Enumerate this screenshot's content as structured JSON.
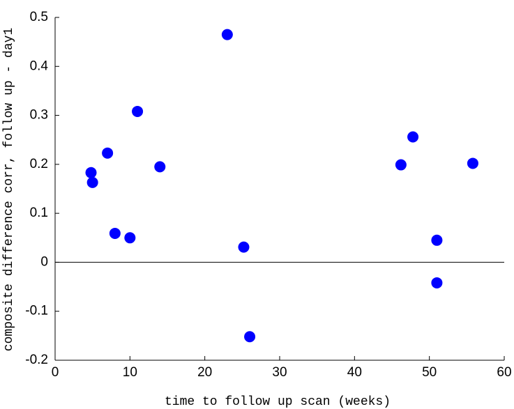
{
  "chart_data": {
    "type": "scatter",
    "xlabel": "time to follow up scan (weeks)",
    "ylabel": "composite difference corr, follow up - day1",
    "series": [
      {
        "color": "#0000ff",
        "x": [
          4.8,
          5.0,
          7.0,
          8.0,
          10.0,
          11.0,
          14.0,
          23.0,
          25.2,
          26.0,
          46.2,
          47.8,
          51.0,
          51.0,
          55.8
        ],
        "values": [
          0.183,
          0.163,
          0.223,
          0.059,
          0.05,
          0.308,
          0.195,
          0.465,
          0.031,
          -0.152,
          0.199,
          0.256,
          0.045,
          -0.042,
          0.202
        ]
      }
    ],
    "xlim": [
      0,
      60
    ],
    "xticks": [
      0,
      10,
      20,
      30,
      40,
      50,
      60
    ],
    "ylim": [
      -0.2,
      0.5
    ],
    "yticks": [
      -0.2,
      -0.1,
      0,
      0.1,
      0.2,
      0.3,
      0.4,
      0.5
    ],
    "zero_line": true
  }
}
